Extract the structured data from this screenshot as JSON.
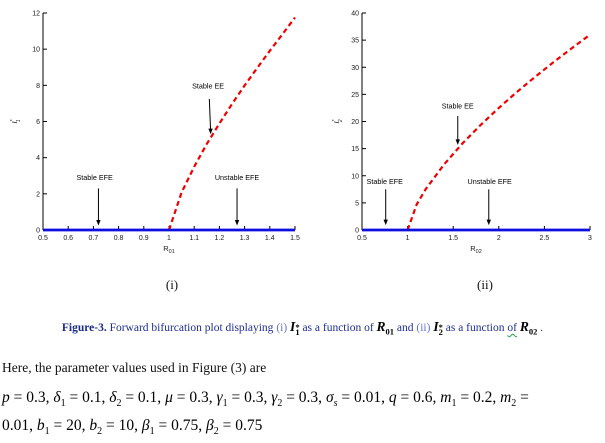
{
  "figure_panels": {
    "panel1_label": "(i)",
    "panel2_label": "(ii)"
  },
  "caption": {
    "label": "Figure-3.",
    "seg1": " Forward bifurcation plot displaying ",
    "marker1": "(i)",
    "math1": {
      "base": "I",
      "sup": "*",
      "sub": "1"
    },
    "seg2": " as a function of ",
    "math2": {
      "base": "R",
      "sub": "01"
    },
    "seg3": " and ",
    "marker2": "(ii)",
    "math3": {
      "base": "I",
      "sup": "*",
      "sub": "2"
    },
    "seg4": " as a function ",
    "of_word": "of",
    "math4": {
      "base": "R",
      "sub": "02"
    },
    "period": "."
  },
  "body_text": {
    "intro": "Here, the parameter values used in Figure (3) are"
  },
  "params": {
    "lines": [
      [
        {
          "v": "p"
        },
        {
          "t": " = 0.3, "
        },
        {
          "v": "δ"
        },
        {
          "b": "1"
        },
        {
          "t": " = 0.1, "
        },
        {
          "v": "δ"
        },
        {
          "b": "2"
        },
        {
          "t": " = 0.1, "
        },
        {
          "v": "μ"
        },
        {
          "t": " = 0.3, "
        },
        {
          "v": "γ"
        },
        {
          "b": "1"
        },
        {
          "t": " = 0.3, "
        },
        {
          "v": "γ"
        },
        {
          "b": "2"
        },
        {
          "t": " = 0.3, "
        },
        {
          "v": "σ"
        },
        {
          "b": "s"
        },
        {
          "t": " = 0.01, "
        },
        {
          "v": "q"
        },
        {
          "t": " = 0.6, "
        },
        {
          "v": "m"
        },
        {
          "b": "1"
        },
        {
          "t": " = 0.2, "
        },
        {
          "v": "m"
        },
        {
          "b": "2"
        },
        {
          "t": " ="
        }
      ],
      [
        {
          "t": "0.01, "
        },
        {
          "v": "b"
        },
        {
          "b": "1"
        },
        {
          "t": " = 20, "
        },
        {
          "v": "b"
        },
        {
          "b": "2"
        },
        {
          "t": " = 10, "
        },
        {
          "v": "β"
        },
        {
          "b": "1"
        },
        {
          "t": " = 0.75, "
        },
        {
          "v": "β"
        },
        {
          "b": "2"
        },
        {
          "t": " = 0.75"
        }
      ]
    ]
  },
  "chart_data": [
    {
      "type": "line",
      "title": "",
      "xlabel": {
        "base": "R",
        "sub": "01"
      },
      "ylabel": {
        "base": "I",
        "sup": "*",
        "sub": "1"
      },
      "xlim": [
        0.5,
        1.5
      ],
      "ylim": [
        0,
        12
      ],
      "xticks": [
        0.5,
        0.6,
        0.7,
        0.8,
        0.9,
        1,
        1.1,
        1.2,
        1.3,
        1.4,
        1.5
      ],
      "xtick_labels": [
        "0.5",
        "0.6",
        "0.7",
        "0.8",
        "0.9",
        "1",
        "1.1",
        "1.2",
        "1.3",
        "1.4",
        "1.5"
      ],
      "yticks": [
        0,
        2,
        4,
        6,
        8,
        10,
        12
      ],
      "ytick_labels": [
        "0",
        "2",
        "4",
        "6",
        "8",
        "10",
        "12"
      ],
      "grid": false,
      "legend": "none",
      "series": [
        {
          "name": "stable-endemic-equilibrium-curve",
          "label": "Stable EE",
          "style": "dashed",
          "color": "#ee0000",
          "width": 2.2,
          "x": [
            1.0,
            1.05,
            1.1,
            1.15,
            1.2,
            1.25,
            1.3,
            1.35,
            1.4,
            1.45,
            1.5
          ],
          "y": [
            0,
            2.08,
            3.5,
            4.76,
            5.89,
            6.97,
            7.99,
            8.96,
            9.91,
            10.82,
            11.75
          ]
        },
        {
          "name": "extinction-equilibrium-line",
          "label": "EFE",
          "style": "solid",
          "color": "#0e0edf",
          "width": 2.8,
          "x": [
            0.5,
            1.5
          ],
          "y": [
            0,
            0
          ]
        }
      ],
      "annotations": [
        {
          "text": "Stable EE",
          "tx": 1.155,
          "ty": 7.95,
          "sx": 1.16,
          "sy": 7.25,
          "ax": 1.165,
          "ay": 5.3
        },
        {
          "text": "Stable EFE",
          "tx": 0.705,
          "ty": 2.9,
          "sx": 0.72,
          "sy": 2.3,
          "ax": 0.72,
          "ay": 0.25
        },
        {
          "text": "Unstable EFE",
          "tx": 1.27,
          "ty": 2.9,
          "sx": 1.27,
          "sy": 2.3,
          "ax": 1.27,
          "ay": 0.25
        }
      ]
    },
    {
      "type": "line",
      "title": "",
      "xlabel": {
        "base": "R",
        "sub": "02"
      },
      "ylabel": {
        "base": "I",
        "sup": "*",
        "sub": "2"
      },
      "xlim": [
        0.5,
        3
      ],
      "ylim": [
        0,
        40
      ],
      "xticks": [
        0.5,
        1,
        1.5,
        2,
        2.5,
        3
      ],
      "xtick_labels": [
        "0.5",
        "1",
        "1.5",
        "2",
        "2.5",
        "3"
      ],
      "yticks": [
        0,
        5,
        10,
        15,
        20,
        25,
        30,
        35,
        40
      ],
      "ytick_labels": [
        "0",
        "5",
        "10",
        "15",
        "20",
        "25",
        "30",
        "35",
        "40"
      ],
      "grid": false,
      "legend": "none",
      "series": [
        {
          "name": "stable-endemic-equilibrium-curve",
          "label": "Stable EE",
          "style": "dashed",
          "color": "#ee0000",
          "width": 2.2,
          "x": [
            1.0,
            1.1,
            1.2,
            1.4,
            1.6,
            1.8,
            2.0,
            2.2,
            2.4,
            2.6,
            2.8,
            3.0
          ],
          "y": [
            0,
            4.72,
            7.56,
            12.09,
            15.92,
            19.35,
            22.5,
            25.46,
            28.26,
            30.94,
            33.52,
            36.0
          ]
        },
        {
          "name": "extinction-equilibrium-line",
          "label": "EFE",
          "style": "solid",
          "color": "#0e0edf",
          "width": 2.8,
          "x": [
            0.5,
            3
          ],
          "y": [
            0,
            0
          ]
        }
      ],
      "annotations": [
        {
          "text": "Stable EE",
          "tx": 1.55,
          "ty": 22.9,
          "sx": 1.55,
          "sy": 21.0,
          "ax": 1.55,
          "ay": 15.7
        },
        {
          "text": "Stable EFE",
          "tx": 0.75,
          "ty": 8.9,
          "sx": 0.76,
          "sy": 7.5,
          "ax": 0.76,
          "ay": 0.9
        },
        {
          "text": "Unstable EFE",
          "tx": 1.9,
          "ty": 8.9,
          "sx": 1.89,
          "sy": 7.5,
          "ax": 1.89,
          "ay": 0.9
        }
      ]
    }
  ]
}
